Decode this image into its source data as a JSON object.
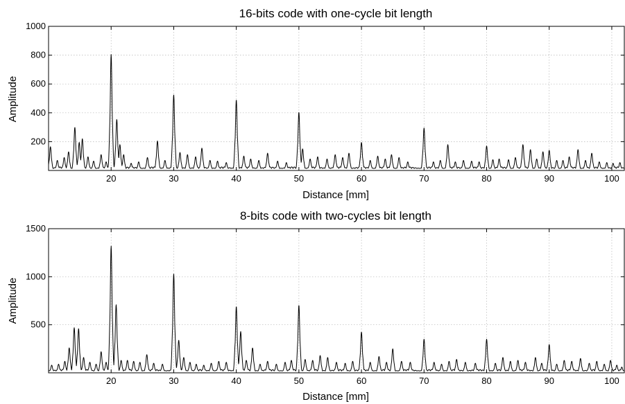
{
  "chart_data": [
    {
      "type": "line",
      "title": "16-bits code with one-cycle bit length",
      "xlabel": "Distance [mm]",
      "ylabel": "Amplitude",
      "xlim": [
        10,
        102
      ],
      "ylim": [
        0,
        1000
      ],
      "xticks": [
        20,
        30,
        40,
        50,
        60,
        70,
        80,
        90,
        100
      ],
      "yticks": [
        200,
        400,
        600,
        800,
        1000
      ],
      "grid": true,
      "baseline": 25,
      "peaks": [
        {
          "x": 10.3,
          "y": 165
        },
        {
          "x": 11.4,
          "y": 70
        },
        {
          "x": 12.5,
          "y": 90
        },
        {
          "x": 13.2,
          "y": 130
        },
        {
          "x": 14.2,
          "y": 300
        },
        {
          "x": 14.9,
          "y": 195
        },
        {
          "x": 15.4,
          "y": 220
        },
        {
          "x": 16.3,
          "y": 95
        },
        {
          "x": 17.2,
          "y": 65
        },
        {
          "x": 18.4,
          "y": 110
        },
        {
          "x": 19.2,
          "y": 60
        },
        {
          "x": 20.0,
          "y": 805
        },
        {
          "x": 20.9,
          "y": 355
        },
        {
          "x": 21.4,
          "y": 180
        },
        {
          "x": 22.0,
          "y": 110
        },
        {
          "x": 23.2,
          "y": 50
        },
        {
          "x": 24.4,
          "y": 60
        },
        {
          "x": 25.8,
          "y": 90
        },
        {
          "x": 27.4,
          "y": 205
        },
        {
          "x": 28.6,
          "y": 70
        },
        {
          "x": 30.0,
          "y": 525
        },
        {
          "x": 31.0,
          "y": 125
        },
        {
          "x": 32.2,
          "y": 110
        },
        {
          "x": 33.5,
          "y": 95
        },
        {
          "x": 34.5,
          "y": 155
        },
        {
          "x": 35.8,
          "y": 70
        },
        {
          "x": 37.0,
          "y": 65
        },
        {
          "x": 38.4,
          "y": 55
        },
        {
          "x": 40.0,
          "y": 490
        },
        {
          "x": 41.2,
          "y": 100
        },
        {
          "x": 42.3,
          "y": 80
        },
        {
          "x": 43.6,
          "y": 70
        },
        {
          "x": 45.0,
          "y": 120
        },
        {
          "x": 46.6,
          "y": 65
        },
        {
          "x": 48.0,
          "y": 55
        },
        {
          "x": 50.0,
          "y": 405
        },
        {
          "x": 50.6,
          "y": 150
        },
        {
          "x": 51.8,
          "y": 80
        },
        {
          "x": 53.0,
          "y": 95
        },
        {
          "x": 54.5,
          "y": 80
        },
        {
          "x": 55.8,
          "y": 110
        },
        {
          "x": 57.0,
          "y": 90
        },
        {
          "x": 58.0,
          "y": 120
        },
        {
          "x": 60.0,
          "y": 195
        },
        {
          "x": 61.4,
          "y": 70
        },
        {
          "x": 62.6,
          "y": 100
        },
        {
          "x": 63.8,
          "y": 80
        },
        {
          "x": 64.8,
          "y": 110
        },
        {
          "x": 66.0,
          "y": 90
        },
        {
          "x": 67.4,
          "y": 60
        },
        {
          "x": 70.0,
          "y": 295
        },
        {
          "x": 71.5,
          "y": 60
        },
        {
          "x": 72.6,
          "y": 70
        },
        {
          "x": 73.8,
          "y": 180
        },
        {
          "x": 75.0,
          "y": 60
        },
        {
          "x": 76.3,
          "y": 70
        },
        {
          "x": 77.6,
          "y": 65
        },
        {
          "x": 78.8,
          "y": 60
        },
        {
          "x": 80.0,
          "y": 170
        },
        {
          "x": 81.0,
          "y": 75
        },
        {
          "x": 82.0,
          "y": 80
        },
        {
          "x": 83.5,
          "y": 75
        },
        {
          "x": 84.6,
          "y": 90
        },
        {
          "x": 85.8,
          "y": 180
        },
        {
          "x": 87.0,
          "y": 145
        },
        {
          "x": 88.0,
          "y": 80
        },
        {
          "x": 89.0,
          "y": 130
        },
        {
          "x": 90.0,
          "y": 140
        },
        {
          "x": 91.2,
          "y": 70
        },
        {
          "x": 92.2,
          "y": 70
        },
        {
          "x": 93.2,
          "y": 95
        },
        {
          "x": 94.6,
          "y": 145
        },
        {
          "x": 95.8,
          "y": 70
        },
        {
          "x": 96.8,
          "y": 120
        },
        {
          "x": 98.0,
          "y": 60
        },
        {
          "x": 99.2,
          "y": 55
        },
        {
          "x": 100.2,
          "y": 50
        },
        {
          "x": 101.3,
          "y": 55
        }
      ]
    },
    {
      "type": "line",
      "title": "8-bits code with two-cycles bit length",
      "xlabel": "Distance [mm]",
      "ylabel": "Amplitude",
      "xlim": [
        10,
        102
      ],
      "ylim": [
        0,
        1500
      ],
      "xticks": [
        20,
        30,
        40,
        50,
        60,
        70,
        80,
        90,
        100
      ],
      "yticks": [
        500,
        1000,
        1500
      ],
      "grid": true,
      "baseline": 35,
      "peaks": [
        {
          "x": 10.5,
          "y": 80
        },
        {
          "x": 11.6,
          "y": 90
        },
        {
          "x": 12.6,
          "y": 120
        },
        {
          "x": 13.3,
          "y": 260
        },
        {
          "x": 14.1,
          "y": 470
        },
        {
          "x": 14.8,
          "y": 460
        },
        {
          "x": 15.6,
          "y": 160
        },
        {
          "x": 16.6,
          "y": 110
        },
        {
          "x": 17.6,
          "y": 90
        },
        {
          "x": 18.4,
          "y": 220
        },
        {
          "x": 19.2,
          "y": 110
        },
        {
          "x": 20.0,
          "y": 1320
        },
        {
          "x": 20.8,
          "y": 710
        },
        {
          "x": 21.6,
          "y": 130
        },
        {
          "x": 22.6,
          "y": 130
        },
        {
          "x": 23.6,
          "y": 120
        },
        {
          "x": 24.6,
          "y": 110
        },
        {
          "x": 25.7,
          "y": 190
        },
        {
          "x": 26.8,
          "y": 100
        },
        {
          "x": 28.2,
          "y": 90
        },
        {
          "x": 30.0,
          "y": 1030
        },
        {
          "x": 30.8,
          "y": 340
        },
        {
          "x": 31.6,
          "y": 160
        },
        {
          "x": 32.6,
          "y": 110
        },
        {
          "x": 33.6,
          "y": 90
        },
        {
          "x": 34.8,
          "y": 80
        },
        {
          "x": 36.0,
          "y": 100
        },
        {
          "x": 37.2,
          "y": 120
        },
        {
          "x": 38.4,
          "y": 110
        },
        {
          "x": 40.0,
          "y": 690
        },
        {
          "x": 40.7,
          "y": 430
        },
        {
          "x": 41.6,
          "y": 130
        },
        {
          "x": 42.6,
          "y": 260
        },
        {
          "x": 43.8,
          "y": 90
        },
        {
          "x": 45.0,
          "y": 120
        },
        {
          "x": 46.4,
          "y": 90
        },
        {
          "x": 47.8,
          "y": 110
        },
        {
          "x": 48.8,
          "y": 130
        },
        {
          "x": 50.0,
          "y": 705
        },
        {
          "x": 51.0,
          "y": 140
        },
        {
          "x": 52.2,
          "y": 130
        },
        {
          "x": 53.4,
          "y": 180
        },
        {
          "x": 54.6,
          "y": 160
        },
        {
          "x": 56.0,
          "y": 110
        },
        {
          "x": 57.4,
          "y": 100
        },
        {
          "x": 58.6,
          "y": 120
        },
        {
          "x": 60.0,
          "y": 425
        },
        {
          "x": 61.4,
          "y": 110
        },
        {
          "x": 62.8,
          "y": 170
        },
        {
          "x": 64.0,
          "y": 110
        },
        {
          "x": 65.0,
          "y": 250
        },
        {
          "x": 66.4,
          "y": 120
        },
        {
          "x": 67.8,
          "y": 110
        },
        {
          "x": 70.0,
          "y": 350
        },
        {
          "x": 71.6,
          "y": 110
        },
        {
          "x": 72.8,
          "y": 90
        },
        {
          "x": 74.0,
          "y": 120
        },
        {
          "x": 75.2,
          "y": 140
        },
        {
          "x": 76.6,
          "y": 110
        },
        {
          "x": 78.2,
          "y": 100
        },
        {
          "x": 80.0,
          "y": 350
        },
        {
          "x": 81.4,
          "y": 100
        },
        {
          "x": 82.6,
          "y": 160
        },
        {
          "x": 83.8,
          "y": 120
        },
        {
          "x": 85.0,
          "y": 130
        },
        {
          "x": 86.2,
          "y": 110
        },
        {
          "x": 87.8,
          "y": 160
        },
        {
          "x": 88.8,
          "y": 100
        },
        {
          "x": 90.0,
          "y": 295
        },
        {
          "x": 91.2,
          "y": 90
        },
        {
          "x": 92.4,
          "y": 130
        },
        {
          "x": 93.6,
          "y": 120
        },
        {
          "x": 95.0,
          "y": 150
        },
        {
          "x": 96.4,
          "y": 100
        },
        {
          "x": 97.6,
          "y": 120
        },
        {
          "x": 98.8,
          "y": 90
        },
        {
          "x": 99.8,
          "y": 130
        },
        {
          "x": 100.8,
          "y": 80
        },
        {
          "x": 101.6,
          "y": 60
        }
      ]
    }
  ]
}
